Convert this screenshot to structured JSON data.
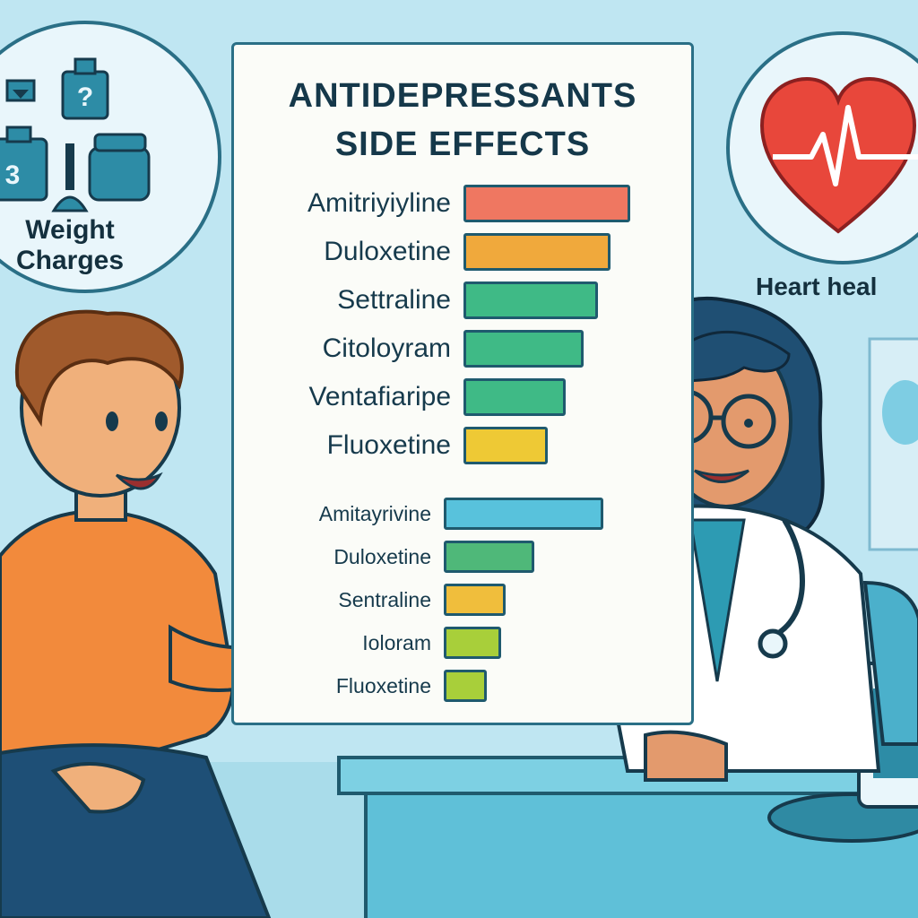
{
  "poster": {
    "title_line1": "ANTIDEPRESSANTS",
    "title_line2": "SIDE EFFECTS",
    "group1": [
      {
        "label": "Amitriyiyline",
        "level": 0.93,
        "color": "#ef7761"
      },
      {
        "label": "Duloxetine",
        "level": 0.82,
        "color": "#f0a93c"
      },
      {
        "label": "Settraline",
        "level": 0.75,
        "color": "#3fba86"
      },
      {
        "label": "Citoloyram",
        "level": 0.67,
        "color": "#3fba86"
      },
      {
        "label": "Ventafiaripe",
        "level": 0.57,
        "color": "#3fba86"
      },
      {
        "label": "Fluoxetine",
        "level": 0.47,
        "color": "#eec935"
      }
    ],
    "group2": [
      {
        "label": "Amitayrivine",
        "level": 1.0,
        "color": "#58c2dc"
      },
      {
        "label": "Duloxetine",
        "level": 0.57,
        "color": "#4fb879"
      },
      {
        "label": "Sentraline",
        "level": 0.39,
        "color": "#f0be3c"
      },
      {
        "label": "Ioloram",
        "level": 0.36,
        "color": "#a8cf3a"
      },
      {
        "label": "Fluoxetine",
        "level": 0.27,
        "color": "#a8cf3a"
      }
    ]
  },
  "weight_circle": {
    "line1": "Weight",
    "line2": "Charges"
  },
  "heart_circle": {
    "label": "Heart heal"
  },
  "colors": {
    "background": "#bfe6f2",
    "patient_shirt": "#f28a3c",
    "doctor_coat": "#ffffff",
    "heart": "#e8473b",
    "desk": "#6ccbe0"
  },
  "icons": [
    "scale-icon",
    "question-jar-icon",
    "weight-jar-icon",
    "heart-pulse-icon",
    "stethoscope-icon",
    "monitor-icon"
  ]
}
